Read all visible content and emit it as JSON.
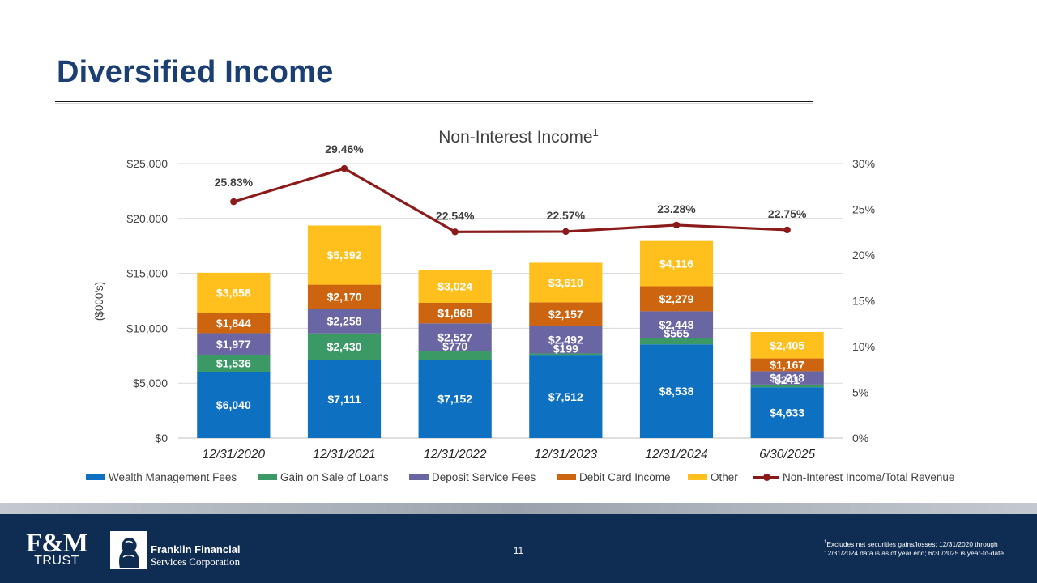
{
  "slide": {
    "title": "Diversified Income",
    "page_number": "11",
    "footnote_marker": "1",
    "footnote": "Excludes net securities gains/losses; 12/31/2020 through 12/31/2024 data is as of year end; 6/30/2025 is year-to-date"
  },
  "footer": {
    "logo1_line1": "F&M",
    "logo1_line2": "TRUST",
    "logo2_line1": "Franklin Financial",
    "logo2_line2": "Services Corporation"
  },
  "colors": {
    "Wealth Management Fees": "#0e70c0",
    "Gain on Sale of Loans": "#3b9966",
    "Deposit Service Fees": "#6a65a3",
    "Debit Card Income": "#cc6410",
    "Other": "#ffc01e",
    "Non-Interest Income/Total Revenue": "#8b1a1a",
    "title": "#1b3f73",
    "footer": "#0f2c52"
  },
  "chart_data": {
    "type": "bar",
    "stacked": true,
    "title": "Non-Interest Income",
    "title_superscript": "1",
    "ylabel": "($000's)",
    "ylim": [
      0,
      25000
    ],
    "yticks": [
      0,
      5000,
      10000,
      15000,
      20000,
      25000
    ],
    "ytick_labels": [
      "$0",
      "$5,000",
      "$10,000",
      "$15,000",
      "$20,000",
      "$25,000"
    ],
    "y2lim": [
      0,
      30
    ],
    "y2ticks": [
      0,
      5,
      10,
      15,
      20,
      25,
      30
    ],
    "y2tick_labels": [
      "0%",
      "5%",
      "10%",
      "15%",
      "20%",
      "25%",
      "30%"
    ],
    "categories": [
      "12/31/2020",
      "12/31/2021",
      "12/31/2022",
      "12/31/2023",
      "12/31/2024",
      "6/30/2025"
    ],
    "series": [
      {
        "name": "Wealth Management Fees",
        "values": [
          6040,
          7111,
          7152,
          7512,
          8538,
          4633
        ],
        "labels": [
          "$6,040",
          "$7,111",
          "$7,152",
          "$7,512",
          "$8,538",
          "$4,633"
        ]
      },
      {
        "name": "Gain on Sale of Loans",
        "values": [
          1536,
          2430,
          770,
          199,
          565,
          241
        ],
        "labels": [
          "$1,536",
          "$2,430",
          "$770",
          "$199",
          "$565",
          "$241"
        ]
      },
      {
        "name": "Deposit Service Fees",
        "values": [
          1977,
          2258,
          2527,
          2492,
          2448,
          1218
        ],
        "labels": [
          "$1,977",
          "$2,258",
          "$2,527",
          "$2,492",
          "$2,448",
          "$1,218"
        ]
      },
      {
        "name": "Debit Card Income",
        "values": [
          1844,
          2170,
          1868,
          2157,
          2279,
          1167
        ],
        "labels": [
          "$1,844",
          "$2,170",
          "$1,868",
          "$2,157",
          "$2,279",
          "$1,167"
        ]
      },
      {
        "name": "Other",
        "values": [
          3658,
          5392,
          3024,
          3610,
          4116,
          2405
        ],
        "labels": [
          "$3,658",
          "$5,392",
          "$3,024",
          "$3,610",
          "$4,116",
          "$2,405"
        ]
      }
    ],
    "line_series": {
      "name": "Non-Interest Income/Total Revenue",
      "axis": "secondary",
      "values": [
        25.83,
        29.46,
        22.54,
        22.57,
        23.28,
        22.75
      ],
      "labels": [
        "25.83%",
        "29.46%",
        "22.54%",
        "22.57%",
        "23.28%",
        "22.75%"
      ]
    },
    "grid": true,
    "legend": "bottom"
  }
}
